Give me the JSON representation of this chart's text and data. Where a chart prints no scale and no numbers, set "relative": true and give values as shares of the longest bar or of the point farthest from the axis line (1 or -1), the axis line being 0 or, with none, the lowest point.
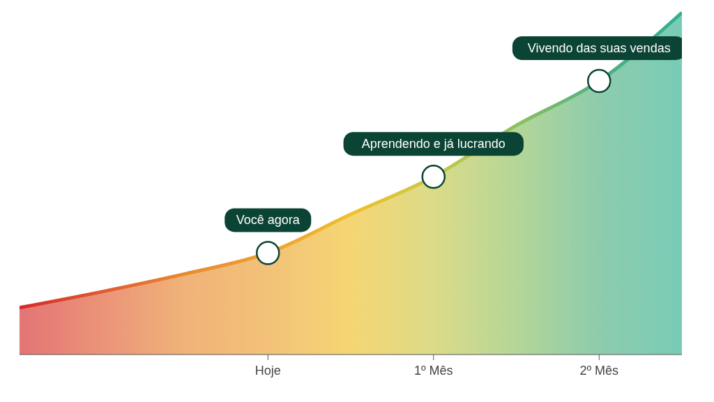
{
  "chart_data": {
    "type": "area",
    "relative": true,
    "categories": [
      null,
      null,
      null,
      "Hoje",
      null,
      "1º Mês",
      null,
      "2º Mês",
      null
    ],
    "series": [
      {
        "colors": [
          "#d42a2a",
          "#e05a30",
          "#e88a30",
          "#eca030",
          "#f0c028",
          "#c8c848",
          "#8cc060",
          "#50b080",
          "#30b090"
        ],
        "values": [
          0.137,
          0.184,
          0.236,
          0.297,
          0.41,
          0.52,
          0.67,
          0.8,
          1
        ]
      },
      {
        "type": "scatter",
        "color": "#ffffff",
        "marker": "circle",
        "x": [
          "Hoje",
          "1º Mês",
          "2º Mês"
        ],
        "values": [
          0.297,
          0.52,
          0.8
        ]
      }
    ],
    "annotations": [
      "Você agora",
      "Aprendendo e já lucrando",
      "Vivendo das suas vendas"
    ]
  }
}
